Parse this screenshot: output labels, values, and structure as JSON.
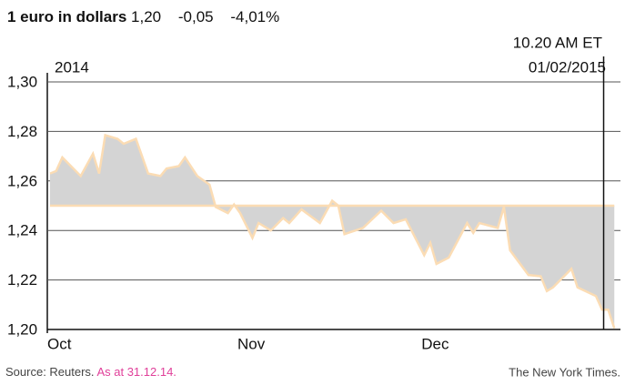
{
  "chart_data": {
    "type": "area",
    "title": "1 euro in dollars",
    "current_value": "1,20",
    "change": "-0,05",
    "change_percent": "-4,01%",
    "year_label": "2014",
    "annotation": [
      "10.20 AM ET",
      "01/02/2015"
    ],
    "source": "Source: Reuters.",
    "as_at": "As at 31.12.14.",
    "credit": "The New York Times.",
    "x": [
      0,
      1,
      2,
      5,
      7,
      8,
      9,
      11,
      12,
      14,
      16,
      18,
      19,
      21,
      22,
      24,
      26,
      27,
      29,
      30,
      31,
      33,
      34,
      36,
      38,
      39,
      41,
      44,
      46,
      47,
      48,
      51,
      54,
      56,
      58,
      61,
      62,
      63,
      65,
      68,
      69,
      70,
      73,
      74,
      75,
      78,
      80,
      81,
      82,
      85,
      86,
      89,
      90,
      91,
      92
    ],
    "values": [
      1.263,
      1.264,
      1.2695,
      1.262,
      1.271,
      1.263,
      1.2785,
      1.277,
      1.275,
      1.277,
      1.263,
      1.262,
      1.265,
      1.266,
      1.2695,
      1.262,
      1.2585,
      1.2495,
      1.247,
      1.2505,
      1.247,
      1.237,
      1.243,
      1.24,
      1.245,
      1.243,
      1.2485,
      1.243,
      1.252,
      1.25,
      1.2385,
      1.241,
      1.248,
      1.243,
      1.2445,
      1.23,
      1.235,
      1.2265,
      1.229,
      1.243,
      1.239,
      1.243,
      1.241,
      1.2495,
      1.232,
      1.222,
      1.2215,
      1.2155,
      1.217,
      1.2245,
      1.217,
      1.2135,
      1.208,
      1.208,
      1.2005
    ],
    "baseline": 1.25,
    "color": "#d4d4d4",
    "line_color": "#fbdcb4",
    "xlim": [
      0,
      93
    ],
    "xticks": [
      {
        "value": 0,
        "label": "Oct"
      },
      {
        "value": 31,
        "label": "Nov"
      },
      {
        "value": 61,
        "label": "Dec"
      }
    ],
    "ylim": [
      1.2,
      1.3
    ],
    "yticks": [
      {
        "value": 1.2,
        "label": "1,20"
      },
      {
        "value": 1.22,
        "label": "1,22"
      },
      {
        "value": 1.24,
        "label": "1,24"
      },
      {
        "value": 1.26,
        "label": "1,26"
      },
      {
        "value": 1.28,
        "label": "1,28"
      },
      {
        "value": 1.3,
        "label": "1,30"
      }
    ],
    "grid": true
  }
}
